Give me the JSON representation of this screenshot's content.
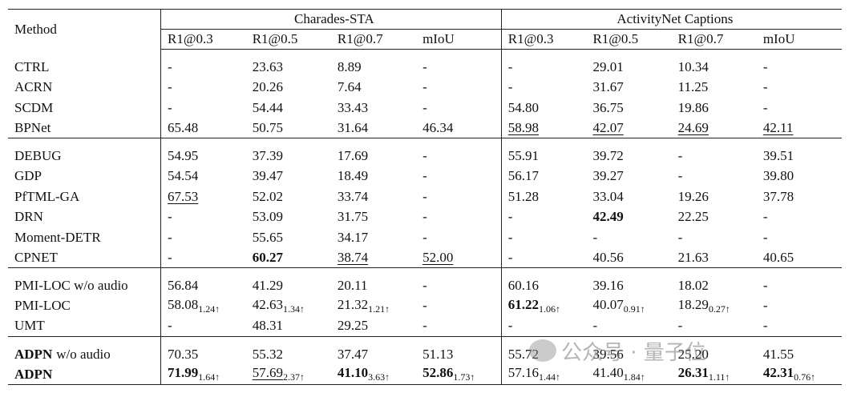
{
  "table": {
    "columns": {
      "method": "Method",
      "groups": [
        {
          "name": "Charades-STA",
          "metrics": [
            "R1@0.3",
            "R1@0.5",
            "R1@0.7",
            "mIoU"
          ]
        },
        {
          "name": "ActivityNet Captions",
          "metrics": [
            "R1@0.3",
            "R1@0.5",
            "R1@0.7",
            "mIoU"
          ]
        }
      ]
    },
    "row_groups": [
      [
        {
          "method": "CTRL",
          "cells": [
            "-",
            "23.63",
            "8.89",
            "-",
            "-",
            "29.01",
            "10.34",
            "-"
          ]
        },
        {
          "method": "ACRN",
          "cells": [
            "-",
            "20.26",
            "7.64",
            "-",
            "-",
            "31.67",
            "11.25",
            "-"
          ]
        },
        {
          "method": "SCDM",
          "cells": [
            "-",
            "54.44",
            "33.43",
            "-",
            "54.80",
            "36.75",
            "19.86",
            "-"
          ]
        },
        {
          "method": "BPNet",
          "cells": [
            "65.48",
            "50.75",
            "31.64",
            "46.34",
            {
              "text": "58.98",
              "underline": true
            },
            {
              "text": "42.07",
              "underline": true
            },
            {
              "text": "24.69",
              "underline": true
            },
            {
              "text": "42.11",
              "underline": true
            }
          ]
        }
      ],
      [
        {
          "method": "DEBUG",
          "cells": [
            "54.95",
            "37.39",
            "17.69",
            "-",
            "55.91",
            "39.72",
            "-",
            "39.51"
          ]
        },
        {
          "method": "GDP",
          "cells": [
            "54.54",
            "39.47",
            "18.49",
            "-",
            "56.17",
            "39.27",
            "-",
            "39.80"
          ]
        },
        {
          "method": "PfTML-GA",
          "cells": [
            {
              "text": "67.53",
              "underline": true
            },
            "52.02",
            "33.74",
            "-",
            "51.28",
            "33.04",
            "19.26",
            "37.78"
          ]
        },
        {
          "method": "DRN",
          "cells": [
            "-",
            "53.09",
            "31.75",
            "-",
            "-",
            {
              "text": "42.49",
              "bold": true
            },
            "22.25",
            "-"
          ]
        },
        {
          "method": "Moment-DETR",
          "cells": [
            "-",
            "55.65",
            "34.17",
            "-",
            "-",
            "-",
            "-",
            "-"
          ]
        },
        {
          "method": "CPNET",
          "cells": [
            "-",
            {
              "text": "60.27",
              "bold": true
            },
            {
              "text": "38.74",
              "underline": true
            },
            {
              "text": "52.00",
              "underline": true
            },
            "-",
            "40.56",
            "21.63",
            "40.65"
          ]
        }
      ],
      [
        {
          "method": "PMI-LOC w/o audio",
          "cells": [
            "56.84",
            "41.29",
            "20.11",
            "-",
            "60.16",
            "39.16",
            "18.02",
            "-"
          ]
        },
        {
          "method": "PMI-LOC",
          "cells": [
            {
              "text": "58.08",
              "sub": "1.24↑"
            },
            {
              "text": "42.63",
              "sub": "1.34↑"
            },
            {
              "text": "21.32",
              "sub": "1.21↑"
            },
            "-",
            {
              "text": "61.22",
              "sub": "1.06↑",
              "bold": true
            },
            {
              "text": "40.07",
              "sub": "0.91↑"
            },
            {
              "text": "18.29",
              "sub": "0.27↑"
            },
            "-"
          ]
        },
        {
          "method": "UMT",
          "cells": [
            "-",
            "48.31",
            "29.25",
            "-",
            "-",
            "-",
            "-",
            "-"
          ]
        }
      ],
      [
        {
          "method": {
            "bold_part": "ADPN",
            "rest": "w/o audio"
          },
          "cells": [
            "70.35",
            "55.32",
            "37.47",
            "51.13",
            "55.72",
            "39.56",
            "25.20",
            "41.55"
          ]
        },
        {
          "method": {
            "bold_part": "ADPN"
          },
          "cells": [
            {
              "text": "71.99",
              "sub": "1.64↑",
              "bold": true
            },
            {
              "text": "57.69",
              "sub": "2.37↑",
              "underline": true
            },
            {
              "text": "41.10",
              "sub": "3.63↑",
              "bold": true
            },
            {
              "text": "52.86",
              "sub": "1.73↑",
              "bold": true
            },
            {
              "text": "57.16",
              "sub": "1.44↑"
            },
            {
              "text": "41.40",
              "sub": "1.84↑"
            },
            {
              "text": "26.31",
              "sub": "1.11↑",
              "bold": true
            },
            {
              "text": "42.31",
              "sub": "0.76↑",
              "bold": true
            }
          ]
        }
      ]
    ]
  },
  "watermark": "公众号 · 量子位"
}
